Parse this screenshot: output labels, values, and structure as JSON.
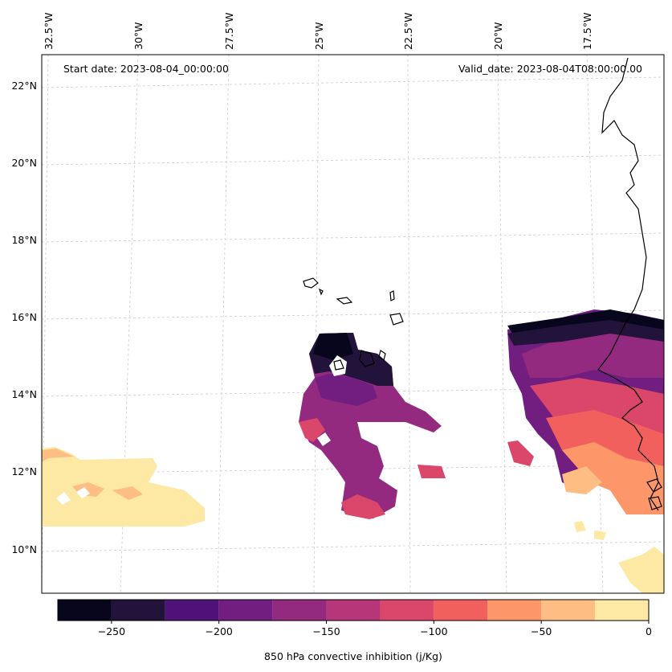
{
  "map": {
    "start_date": "Start date: 2023-08-04_00:00:00",
    "valid_date": "Valid_date: 2023-08-04T08:00:00.00",
    "lon_labels": [
      "32.5°W",
      "30°W",
      "27.5°W",
      "25°W",
      "22.5°W",
      "20°W",
      "17.5°W"
    ],
    "lat_labels": [
      "22°N",
      "20°N",
      "18°N",
      "16°N",
      "14°N",
      "12°N",
      "10°N"
    ]
  },
  "colorbar": {
    "label": "850 hPa convective inhibition (j/Kg)",
    "tick_labels": [
      "−250",
      "−200",
      "−150",
      "−100",
      "−50",
      "0"
    ],
    "bounds": [
      -275,
      -250,
      -225,
      -200,
      -175,
      -150,
      -125,
      -100,
      -75,
      -50,
      -25,
      0
    ],
    "colors": [
      "#07061c",
      "#211339",
      "#4e1279",
      "#721e81",
      "#932a80",
      "#b63679",
      "#db476a",
      "#f1605d",
      "#fd9669",
      "#febd82",
      "#fde9a4"
    ]
  }
}
